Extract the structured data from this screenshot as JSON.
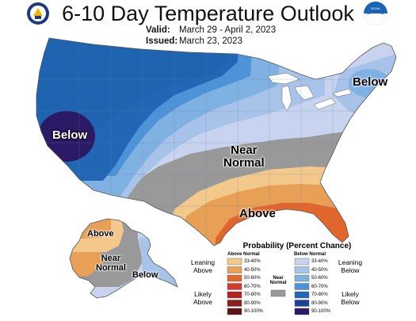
{
  "title": "6-10 Day Temperature Outlook",
  "valid_label": "Valid:",
  "valid_value": "March 29 - April 2, 2023",
  "issued_label": "Issued:",
  "issued_value": "March 23, 2023",
  "map_labels": {
    "below_west": "Below",
    "below_northeast": "Below",
    "near_normal_center": [
      "Near",
      "Normal"
    ],
    "above_south": "Above",
    "alaska_above": "Above",
    "alaska_near_normal": [
      "Near",
      "Normal"
    ],
    "alaska_below": "Below"
  },
  "legend": {
    "title": "Probability (Percent Chance)",
    "above_header": "Above Normal",
    "below_header": "Below Normal",
    "near_normal_label": [
      "Near",
      "Normal"
    ],
    "leaning_above": [
      "Leaning",
      "Above"
    ],
    "likely_above": [
      "Likely",
      "Above"
    ],
    "leaning_below": [
      "Leaning",
      "Below"
    ],
    "likely_below": [
      "Likely",
      "Below"
    ],
    "bins": [
      "33-40%",
      "40-50%",
      "50-60%",
      "60-70%",
      "70-80%",
      "80-90%",
      "90-100%"
    ],
    "above_colors": [
      "#f3c98b",
      "#e8a057",
      "#e2662c",
      "#d23a2b",
      "#b52222",
      "#8e1d1d",
      "#5e1414"
    ],
    "below_colors": [
      "#c8d4ef",
      "#a7c3ea",
      "#7fb1e3",
      "#4d93d7",
      "#2267b5",
      "#1b4295",
      "#2b1a66"
    ],
    "near_color": "#999999"
  },
  "logos": [
    "doc-seal-icon",
    "noaa-logo-icon"
  ]
}
